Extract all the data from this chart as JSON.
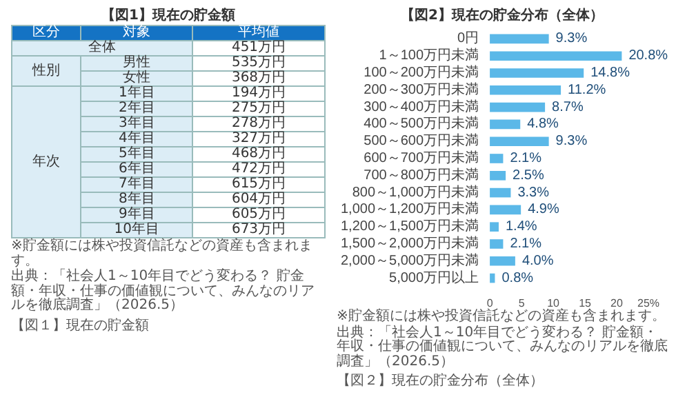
{
  "chart_data": [
    {
      "type": "heatmap",
      "title": "【図1】現在の貯金額",
      "categories": [
        "平均値"
      ],
      "y_categories": [
        null,
        "男性",
        "女性",
        "1年目",
        "2年目",
        "3年目",
        "4年目",
        "5年目",
        "6年目",
        "7年目",
        "8年目",
        "9年目",
        "10年目"
      ],
      "cells": [
        [
          451
        ],
        [
          535
        ],
        [
          368
        ],
        [
          194
        ],
        [
          275
        ],
        [
          278
        ],
        [
          327
        ],
        [
          468
        ],
        [
          472
        ],
        [
          615
        ],
        [
          604
        ],
        [
          605
        ],
        [
          673
        ]
      ],
      "cell_labels": [
        [
          "451万円"
        ],
        [
          "535万円"
        ],
        [
          "368万円"
        ],
        [
          "194万円"
        ],
        [
          "275万円"
        ],
        [
          "278万円"
        ],
        [
          "327万円"
        ],
        [
          "468万円"
        ],
        [
          "472万円"
        ],
        [
          "615万円"
        ],
        [
          "604万円"
        ],
        [
          "605万円"
        ],
        [
          "673万円"
        ]
      ],
      "annotations": [
        "区分",
        "対象",
        "性別",
        "年次",
        "全体",
        "※貯金額には株や投資信託などの資産も含まれます。",
        "出典：「社会人1～10年目でどう変わる？ 貯金額・年収・仕事の価値観について、みんなのリアルを徹底調査」（2026.5）",
        "【図１】現在の貯金額"
      ]
    },
    {
      "type": "bar",
      "orientation": "horizontal",
      "title": "【図2】現在の貯金分布（全体）",
      "categories": [
        "0円",
        "1～100万円未満",
        "100～200万円未満",
        "200～300万円未満",
        "300～400万円未満",
        "400～500万円未満",
        "500～600万円未満",
        "600～700万円未満",
        "700～800万円未満",
        "800～1,000万円未満",
        "1,000～1,200万円未満",
        "1,200～1,500万円未満",
        "1,500～2,000万円未満",
        "2,000～5,000万円未満",
        "5,000万円以上"
      ],
      "values": [
        9.3,
        20.8,
        14.8,
        11.2,
        8.7,
        4.8,
        9.3,
        2.1,
        2.5,
        3.3,
        4.9,
        1.4,
        2.1,
        4.0,
        0.8
      ],
      "value_labels": [
        "9.3%",
        "20.8%",
        "14.8%",
        "11.2%",
        "8.7%",
        "4.8%",
        "9.3%",
        "2.1%",
        "2.5%",
        "3.3%",
        "4.9%",
        "1.4%",
        "2.1%",
        "4.0%",
        "0.8%"
      ],
      "color": "#5bb8e8",
      "xlim": [
        0,
        25
      ],
      "xticks": [
        0,
        5,
        10,
        15,
        20,
        {
          "value": 25,
          "label": "25%"
        }
      ],
      "annotations": [
        "※貯金額には株や投資信託などの資産も含まれます。",
        "出典：「社会人1～10年目でどう変わる？ 貯金額・年収・仕事の価値観について、みんなのリアルを徹底調査」（2026.5）",
        "【図２】現在の貯金分布（全体）"
      ]
    }
  ]
}
